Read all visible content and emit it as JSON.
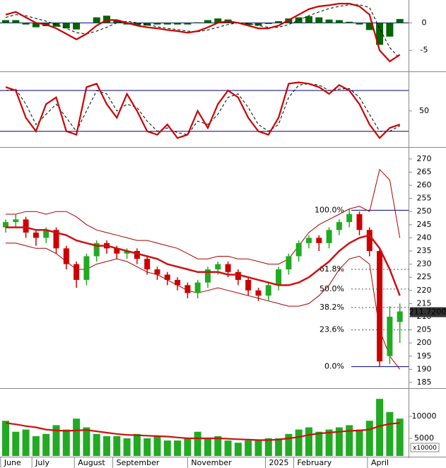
{
  "chart_data": [
    {
      "type": "macd",
      "ylim": [
        -8.7,
        3.9
      ],
      "yticks": [
        0,
        -5
      ],
      "macd": [
        1.5,
        2.0,
        1,
        0,
        -0.3,
        -1,
        -2,
        -3,
        -2,
        -0.5,
        0.5,
        0.5,
        0,
        -0.5,
        -0.8,
        -1,
        -1.3,
        -1.5,
        -1.8,
        -1.5,
        -0.8,
        0,
        0.3,
        0,
        -0.5,
        -1,
        -1,
        -0.5,
        0.5,
        1.5,
        2.5,
        3.0,
        3.2,
        3.5,
        3.5,
        3.0,
        1.5,
        -5,
        -7,
        -5.8
      ],
      "signal": [
        1,
        1.5,
        1.3,
        0.8,
        0.3,
        -0.3,
        -1,
        -1.8,
        -2,
        -1.5,
        -0.8,
        0,
        0.3,
        0,
        -0.3,
        -0.7,
        -1,
        -1.2,
        -1.5,
        -1.6,
        -1.3,
        -0.8,
        -0.3,
        0,
        -0.1,
        -0.5,
        -0.8,
        -0.8,
        -0.3,
        0.5,
        1.3,
        2,
        2.6,
        3,
        3.3,
        3.3,
        2.8,
        -1,
        -4.5,
        -6.5
      ],
      "histogram": [
        0.5,
        0.5,
        -0.3,
        -0.8,
        -0.6,
        -0.7,
        -1,
        -1.2,
        0,
        1,
        1.3,
        0.5,
        -0.3,
        -0.5,
        -0.5,
        -0.3,
        -0.3,
        -0.3,
        -0.3,
        0.1,
        0.5,
        0.8,
        0.6,
        0,
        -0.4,
        -0.5,
        -0.2,
        0.3,
        0.8,
        1,
        1.2,
        1,
        0.6,
        0.5,
        0.2,
        -0.3,
        -1.3,
        -4,
        -2.5,
        0.7
      ],
      "line_color": "#cc0000",
      "signal_color": "#000000",
      "histogram_color": "#006400"
    },
    {
      "type": "stochastic",
      "ylim": [
        1,
        105
      ],
      "yticks": [
        50
      ],
      "hlines": [
        20,
        80
      ],
      "k": [
        85,
        80,
        40,
        20,
        60,
        70,
        20,
        15,
        85,
        90,
        60,
        40,
        75,
        50,
        20,
        15,
        30,
        10,
        15,
        50,
        25,
        60,
        80,
        70,
        40,
        20,
        15,
        40,
        90,
        92,
        90,
        85,
        75,
        88,
        80,
        60,
        30,
        10,
        25,
        30
      ],
      "d": [
        80,
        82,
        60,
        30,
        45,
        60,
        40,
        20,
        50,
        80,
        75,
        50,
        60,
        55,
        35,
        20,
        25,
        18,
        15,
        35,
        30,
        45,
        70,
        75,
        55,
        30,
        20,
        30,
        70,
        88,
        90,
        88,
        80,
        82,
        83,
        70,
        45,
        20,
        20,
        28
      ],
      "line_color": "#cc0000",
      "signal_color": "#000000",
      "hline_color": "#000080"
    },
    {
      "type": "candlestick",
      "ylim": [
        183.1,
        274
      ],
      "yticks": [
        185,
        190,
        195,
        200,
        205,
        210,
        215,
        220,
        225,
        230,
        235,
        240,
        245,
        250,
        255,
        260,
        265,
        270
      ],
      "open": [
        244,
        246,
        247,
        242,
        240,
        243,
        236,
        230,
        224,
        233,
        238,
        236,
        234,
        235,
        232,
        228,
        226,
        224,
        222,
        219,
        223,
        228,
        230,
        227,
        224,
        220,
        218,
        222,
        228,
        233,
        238,
        240,
        238,
        243,
        246,
        249,
        243,
        235,
        195,
        208
      ],
      "high": [
        247,
        249,
        248,
        243,
        244,
        244,
        237,
        231,
        234,
        239,
        239,
        237,
        236,
        236,
        233,
        229,
        227,
        225,
        223,
        224,
        229,
        231,
        231,
        228,
        225,
        221,
        223,
        229,
        234,
        239,
        241,
        241,
        244,
        247,
        251,
        250,
        244,
        236,
        214,
        215
      ],
      "low": [
        242,
        244,
        240,
        237,
        238,
        234,
        228,
        221,
        222,
        231,
        234,
        232,
        232,
        230,
        226,
        224,
        222,
        220,
        217,
        217,
        221,
        226,
        225,
        222,
        218,
        216,
        216,
        220,
        226,
        231,
        236,
        235,
        236,
        241,
        244,
        241,
        233,
        191,
        192,
        200
      ],
      "close": [
        246,
        247,
        242,
        240,
        243,
        236,
        230,
        224,
        233,
        238,
        236,
        234,
        235,
        232,
        228,
        226,
        224,
        222,
        219,
        223,
        228,
        230,
        227,
        224,
        220,
        218,
        222,
        228,
        233,
        238,
        240,
        238,
        243,
        246,
        249,
        243,
        235,
        193,
        210,
        212
      ],
      "ma": [
        244,
        244,
        244,
        243,
        243,
        242,
        241,
        239,
        238,
        237,
        237,
        236,
        235,
        234,
        233,
        232,
        230,
        229,
        228,
        227,
        227,
        227,
        226,
        226,
        225,
        224,
        223,
        222,
        222,
        223,
        225,
        228,
        231,
        235,
        238,
        240,
        241,
        236,
        228,
        218
      ],
      "upper_band": [
        249,
        249,
        250,
        250,
        249,
        250,
        250,
        248,
        245,
        243,
        242,
        241,
        240,
        239,
        239,
        238,
        237,
        236,
        234,
        232,
        232,
        233,
        233,
        232,
        232,
        231,
        230,
        230,
        232,
        237,
        242,
        245,
        247,
        249,
        251,
        252,
        250,
        266,
        262,
        240
      ],
      "lower_band": [
        238,
        238,
        237,
        236,
        236,
        234,
        231,
        228,
        228,
        230,
        231,
        232,
        231,
        229,
        227,
        226,
        224,
        222,
        220,
        219,
        220,
        221,
        220,
        219,
        218,
        217,
        216,
        215,
        214,
        214,
        215,
        218,
        222,
        228,
        232,
        233,
        230,
        205,
        195,
        190
      ],
      "up_color": "#22aa22",
      "down_color": "#cc0000",
      "ma_color": "#cc1111",
      "band_color": "#aa0000",
      "fibonacci": [
        {
          "label": "100.0%",
          "price": 250.5
        },
        {
          "label": "61.8%",
          "price": 228
        },
        {
          "label": "50.0%",
          "price": 220.5
        },
        {
          "label": "38.2%",
          "price": 213.5
        },
        {
          "label": "23.6%",
          "price": 205
        },
        {
          "label": "0.0%",
          "price": 191
        }
      ],
      "fib_color": "#000080",
      "fib_label_color": "#3333aa",
      "last_price": {
        "value": 211.72,
        "label": "211.7200"
      }
    },
    {
      "type": "bar",
      "ylim": [
        970,
        15970
      ],
      "yticks": [
        5000,
        10000
      ],
      "unit_label": "x10000",
      "values": [
        9000,
        6500,
        7000,
        5500,
        6000,
        8000,
        7000,
        9500,
        7500,
        6000,
        5500,
        5500,
        5000,
        6000,
        5000,
        5500,
        4500,
        4500,
        5000,
        6500,
        5000,
        5500,
        4500,
        4000,
        4500,
        4500,
        5000,
        5000,
        6000,
        7000,
        7500,
        6500,
        7000,
        7500,
        8000,
        7000,
        9000,
        14000,
        11000,
        9500
      ],
      "ma": [
        8500,
        8200,
        7800,
        7500,
        7000,
        6800,
        6700,
        6800,
        6900,
        6600,
        6300,
        6000,
        5800,
        5700,
        5600,
        5500,
        5400,
        5200,
        5000,
        5000,
        5000,
        5000,
        4900,
        4800,
        4700,
        4600,
        4600,
        4700,
        5000,
        5300,
        5800,
        6100,
        6300,
        6500,
        6700,
        6800,
        7000,
        7800,
        8300,
        8500
      ],
      "color": "#22aa22",
      "ma_color": "#cc1111",
      "xticks": [
        {
          "value": -0.5,
          "label": "June"
        },
        {
          "value": 2.6,
          "label": "July"
        },
        {
          "value": 6.8,
          "label": "August"
        },
        {
          "value": 10.6,
          "label": "September"
        },
        {
          "value": 18.0,
          "label": "November"
        },
        {
          "value": 25.7,
          "label": "2025"
        },
        {
          "value": 28.5,
          "label": "February"
        },
        {
          "value": 35.8,
          "label": "April"
        }
      ]
    }
  ]
}
